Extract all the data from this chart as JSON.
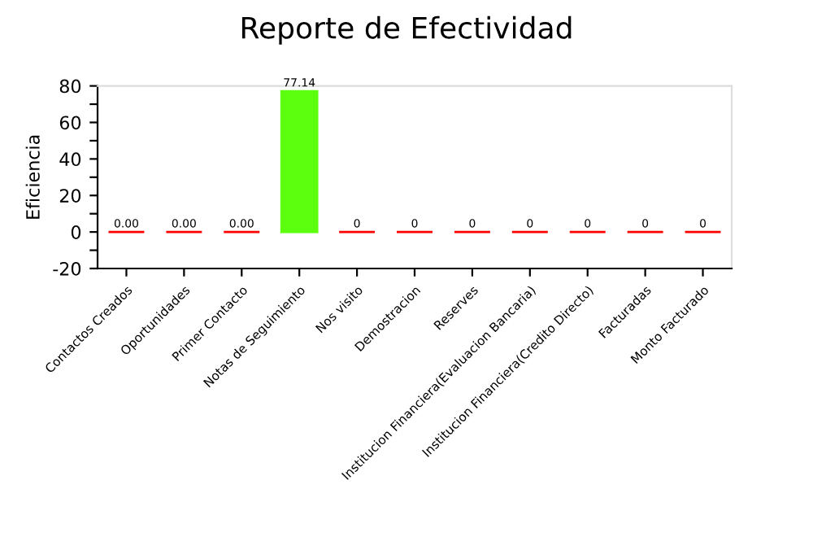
{
  "chart_data": {
    "type": "bar",
    "title": "Reporte de Efectividad",
    "ylabel": "Eficiencia",
    "categories": [
      "Contactos Creados",
      "Oportunidades",
      "Primer Contacto",
      "Notas de Seguimiento",
      "Nos visito",
      "Demostracion",
      "Reserves",
      "Institucion Financiera(Evaluacion Bancaria)",
      "Institucion Financiera(Credito Directo)",
      "Facturadas",
      "Monto Facturado"
    ],
    "values": [
      0,
      0,
      0,
      77.14,
      0,
      0,
      0,
      0,
      0,
      0,
      0
    ],
    "colors": [
      "#ff0000",
      "#ff0000",
      "#ff0000",
      "#5cff0d",
      "#ff0000",
      "#ff0000",
      "#ff0000",
      "#ff0000",
      "#ff0000",
      "#ff0000",
      "#ff0000"
    ],
    "value_labels": [
      "0.00",
      "0.00",
      "0.00",
      "77.14",
      "0",
      "0",
      "0",
      "0",
      "0",
      "0",
      "0"
    ],
    "ylim": [
      -20,
      80
    ],
    "yticks": [
      -20,
      {
        "value": -10,
        "label": null
      },
      0,
      {
        "value": 10,
        "label": null
      },
      20,
      {
        "value": 30,
        "label": null
      },
      40,
      {
        "value": 50,
        "label": null
      },
      60,
      {
        "value": 70,
        "label": null
      },
      80
    ],
    "grid": false
  }
}
